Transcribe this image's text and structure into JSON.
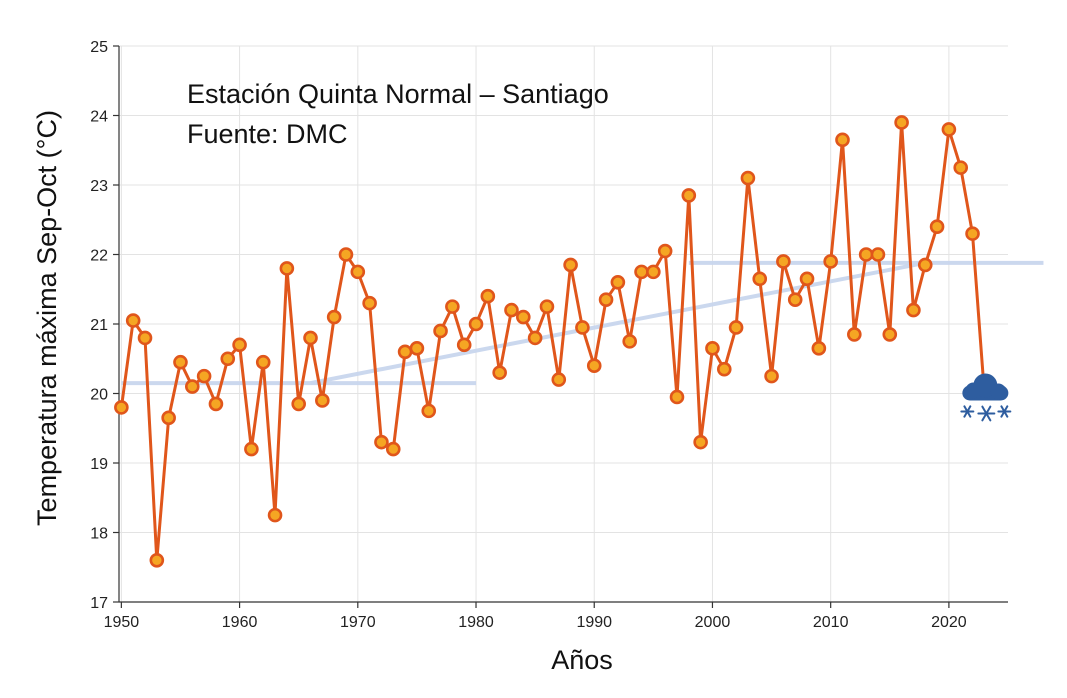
{
  "chart_data": {
    "type": "line",
    "title": "",
    "annotations": [
      "Estación Quinta Normal – Santiago",
      "Fuente: DMC"
    ],
    "xlabel": "Años",
    "ylabel": "Temperatura máxima Sep-Oct (°C)",
    "xlim": [
      1949.8,
      2025
    ],
    "ylim": [
      17,
      25
    ],
    "xticks": [
      1950,
      1960,
      1970,
      1980,
      1990,
      2000,
      2010,
      2020
    ],
    "yticks": [
      17,
      18,
      19,
      20,
      21,
      22,
      23,
      24,
      25
    ],
    "grid": true,
    "series": [
      {
        "name": "Temperatura máxima Sep-Oct",
        "color": "#e0561b",
        "marker_fill": "#f5a623",
        "x": [
          1950,
          1951,
          1952,
          1953,
          1954,
          1955,
          1956,
          1957,
          1958,
          1959,
          1960,
          1961,
          1962,
          1963,
          1964,
          1965,
          1966,
          1967,
          1968,
          1969,
          1970,
          1971,
          1972,
          1973,
          1974,
          1975,
          1976,
          1977,
          1978,
          1979,
          1980,
          1981,
          1982,
          1983,
          1984,
          1985,
          1986,
          1987,
          1988,
          1989,
          1990,
          1991,
          1992,
          1993,
          1994,
          1995,
          1996,
          1997,
          1998,
          1999,
          2000,
          2001,
          2002,
          2003,
          2004,
          2005,
          2006,
          2007,
          2008,
          2009,
          2010,
          2011,
          2012,
          2013,
          2014,
          2015,
          2016,
          2017,
          2018,
          2019,
          2020,
          2021,
          2022,
          2023
        ],
        "values": [
          19.8,
          21.05,
          20.8,
          17.6,
          19.65,
          20.45,
          20.1,
          20.25,
          19.85,
          20.5,
          20.7,
          19.2,
          20.45,
          18.25,
          21.8,
          19.85,
          20.8,
          19.9,
          21.1,
          22.0,
          21.75,
          21.3,
          19.3,
          19.2,
          20.6,
          20.65,
          19.75,
          20.9,
          21.25,
          20.7,
          21.0,
          21.4,
          20.3,
          21.2,
          21.1,
          20.8,
          21.25,
          20.2,
          21.85,
          20.95,
          20.4,
          21.35,
          21.6,
          20.75,
          21.75,
          21.75,
          22.05,
          19.95,
          22.85,
          19.3,
          20.65,
          20.35,
          20.95,
          23.1,
          21.65,
          20.25,
          21.9,
          21.35,
          21.65,
          20.65,
          21.9,
          23.65,
          20.85,
          22.0,
          22.0,
          20.85,
          23.9,
          21.2,
          21.85,
          22.4,
          23.8,
          23.25,
          22.3,
          20.0
        ],
        "last_point_marker": "snow-cloud-icon"
      }
    ],
    "reference_lines": [
      {
        "name": "mean-1950-1980",
        "x": [
          1950,
          1980
        ],
        "y": [
          20.15,
          20.15
        ],
        "color": "#c9d6ee"
      },
      {
        "name": "trend-line",
        "x": [
          1966,
          2018
        ],
        "y": [
          20.15,
          21.88
        ],
        "color": "#c9d6ee"
      },
      {
        "name": "mean-1998-2028",
        "x": [
          1998,
          2028
        ],
        "y": [
          21.88,
          21.88
        ],
        "color": "#c9d6ee"
      }
    ],
    "icon_color": "#2e5d9f"
  }
}
